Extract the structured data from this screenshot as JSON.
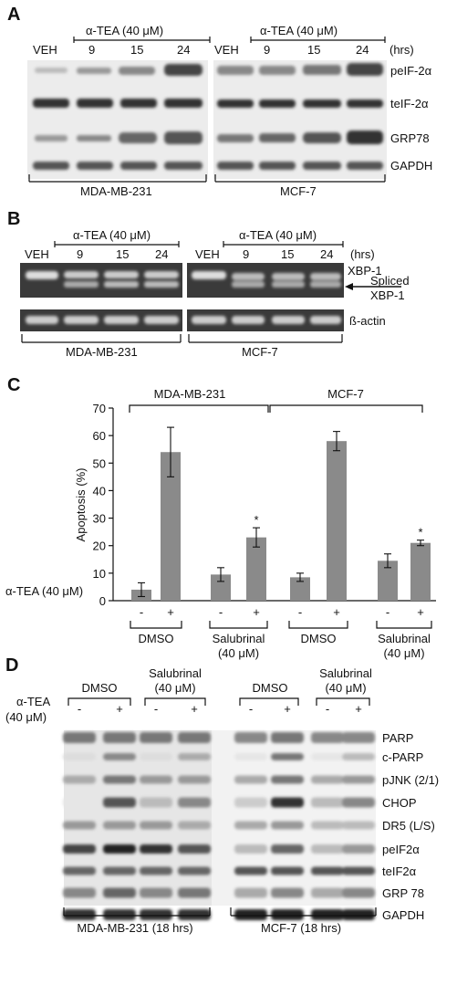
{
  "panel_labels": {
    "a": "A",
    "b": "B",
    "c": "C",
    "d": "D"
  },
  "panel_a": {
    "treatment_header": "α-TEA (40 μM)",
    "veh": "VEH",
    "times": [
      "9",
      "15",
      "24"
    ],
    "units": "(hrs)",
    "rows": [
      "peIF-2α",
      "teIF-2α",
      "GRP78",
      "GAPDH"
    ],
    "cell_lines": [
      "MDA-MB-231",
      "MCF-7"
    ]
  },
  "panel_b": {
    "treatment_header": "α-TEA (40 μM)",
    "veh": "VEH",
    "times": [
      "9",
      "15",
      "24"
    ],
    "units": "(hrs)",
    "rows": [
      "XBP-1",
      "ß-actin"
    ],
    "spliced_label": [
      "Spliced",
      "XBP-1"
    ],
    "cell_lines": [
      "MDA-MB-231",
      "MCF-7"
    ]
  },
  "chart_data": {
    "type": "bar",
    "ylabel": "Apoptosis (%)",
    "ylim": [
      0,
      70
    ],
    "yticks": [
      0,
      10,
      20,
      30,
      40,
      50,
      60,
      70
    ],
    "group_labels": [
      "MDA-MB-231",
      "MCF-7"
    ],
    "row_label": "α-TEA (40 μM)",
    "treatments": [
      "DMSO",
      "Salubrinal (40 μM)",
      "DMSO",
      "Salubrinal (40 μM)"
    ],
    "treatment_lines": [
      [
        "DMSO"
      ],
      [
        "Salubrinal",
        "(40 μM)"
      ],
      [
        "DMSO"
      ],
      [
        "Salubrinal",
        "(40 μM)"
      ]
    ],
    "signs": [
      "-",
      "+",
      "-",
      "+",
      "-",
      "+",
      "-",
      "+"
    ],
    "values": [
      4,
      54,
      9.5,
      23,
      8.5,
      58,
      14.5,
      21
    ],
    "errors": [
      2.5,
      9,
      2.5,
      3.5,
      1.5,
      3.5,
      2.5,
      1
    ],
    "significance": [
      "",
      "",
      "",
      "*",
      "",
      "",
      "",
      "*"
    ],
    "bar_color": "#8a8a8a",
    "grid": false
  },
  "panel_d": {
    "row_label": [
      "α-TEA",
      "(40 μM)"
    ],
    "group_labels": [
      "DMSO",
      [
        "Salubrinal",
        "(40 μM)"
      ],
      "DMSO",
      [
        "Salubrinal",
        "(40 μM)"
      ]
    ],
    "signs": [
      "-",
      "+",
      "-",
      "+",
      "-",
      "+",
      "-",
      "+"
    ],
    "rows": [
      "PARP",
      "c-PARP",
      "pJNK (2/1)",
      "CHOP",
      "DR5 (L/S)",
      "peIF2α",
      "teIF2α",
      "GRP 78",
      "GAPDH"
    ],
    "cell_lines": [
      "MDA-MB-231 (18 hrs)",
      "MCF-7 (18 hrs)"
    ]
  }
}
